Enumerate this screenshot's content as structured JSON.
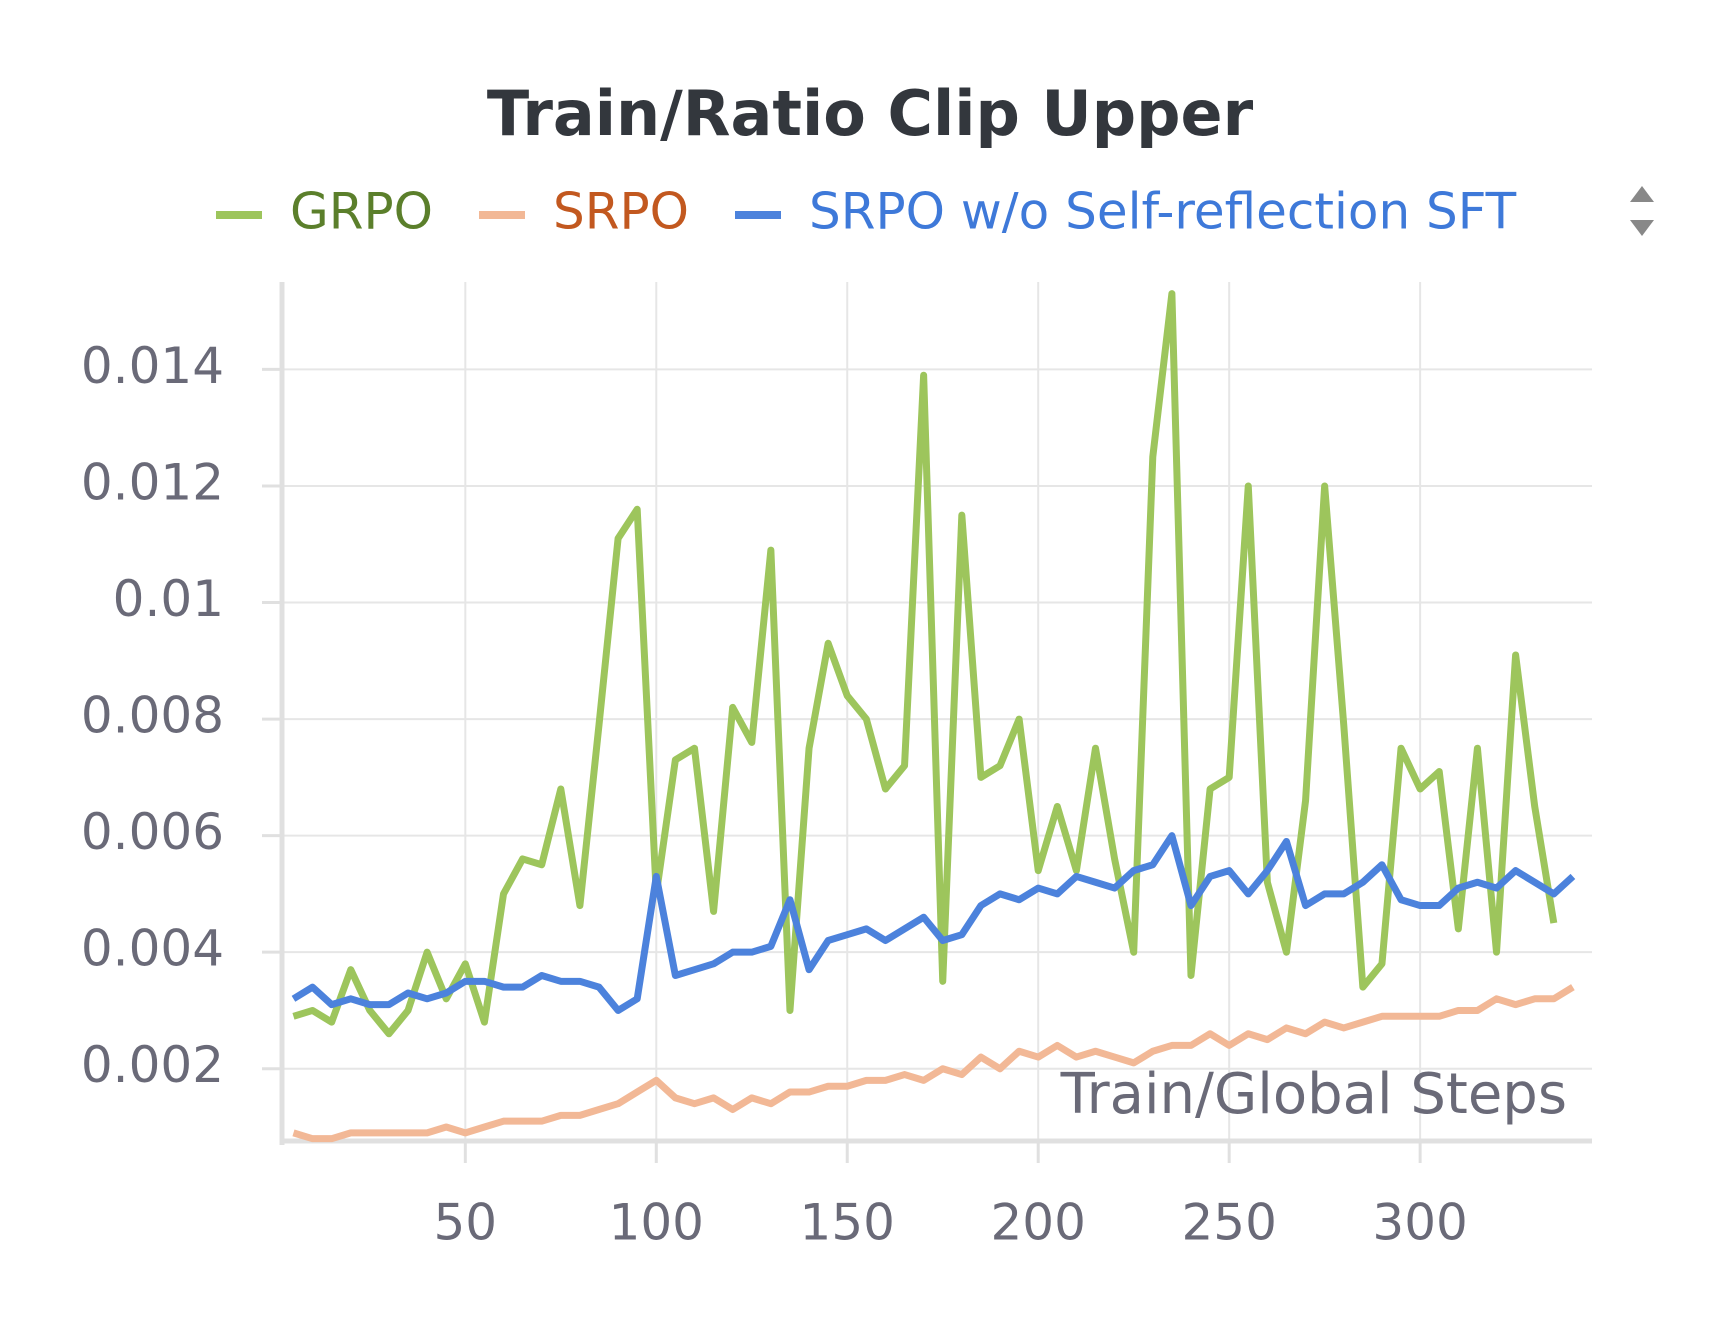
{
  "chart_data": {
    "type": "line",
    "title": "Train/Ratio Clip Upper",
    "x_label": "Train/Global Steps",
    "x": [
      5,
      10,
      15,
      20,
      25,
      30,
      35,
      40,
      45,
      50,
      55,
      60,
      65,
      70,
      75,
      80,
      85,
      90,
      95,
      100,
      105,
      110,
      115,
      120,
      125,
      130,
      135,
      140,
      145,
      150,
      155,
      160,
      165,
      170,
      175,
      180,
      185,
      190,
      195,
      200,
      205,
      210,
      215,
      220,
      225,
      230,
      235,
      240,
      245,
      250,
      255,
      260,
      265,
      270,
      275,
      280,
      285,
      290,
      295,
      300,
      305,
      310,
      315,
      320,
      325,
      330,
      335,
      340
    ],
    "series": [
      {
        "name": "GRPO",
        "color": "#9dc55c",
        "legend_text_color": "#5b7f2b",
        "values": [
          0.0029,
          0.003,
          0.0028,
          0.0037,
          0.003,
          0.0026,
          0.003,
          0.004,
          0.0032,
          0.0038,
          0.0028,
          0.005,
          0.0056,
          0.0055,
          0.0068,
          0.0048,
          0.0079,
          0.0111,
          0.0116,
          0.005,
          0.0073,
          0.0075,
          0.0047,
          0.0082,
          0.0076,
          0.0109,
          0.003,
          0.0075,
          0.0093,
          0.0084,
          0.008,
          0.0068,
          0.0072,
          0.0139,
          0.0035,
          0.0115,
          0.007,
          0.0072,
          0.008,
          0.0054,
          0.0065,
          0.0054,
          0.0075,
          0.0056,
          0.004,
          0.0125,
          0.0153,
          0.0036,
          0.0068,
          0.007,
          0.012,
          0.0052,
          0.004,
          0.0066,
          0.012,
          0.0079,
          0.0034,
          0.0038,
          0.0075,
          0.0068,
          0.0071,
          0.0044,
          0.0075,
          0.004,
          0.0091,
          0.0065,
          0.0045,
          null
        ]
      },
      {
        "name": "SRPO",
        "color": "#f2b896",
        "legend_text_color": "#c2581f",
        "values": [
          0.0009,
          0.0008,
          0.0008,
          0.0009,
          0.0009,
          0.0009,
          0.0009,
          0.0009,
          0.001,
          0.0009,
          0.001,
          0.0011,
          0.0011,
          0.0011,
          0.0012,
          0.0012,
          0.0013,
          0.0014,
          0.0016,
          0.0018,
          0.0015,
          0.0014,
          0.0015,
          0.0013,
          0.0015,
          0.0014,
          0.0016,
          0.0016,
          0.0017,
          0.0017,
          0.0018,
          0.0018,
          0.0019,
          0.0018,
          0.002,
          0.0019,
          0.0022,
          0.002,
          0.0023,
          0.0022,
          0.0024,
          0.0022,
          0.0023,
          0.0022,
          0.0021,
          0.0023,
          0.0024,
          0.0024,
          0.0026,
          0.0024,
          0.0026,
          0.0025,
          0.0027,
          0.0026,
          0.0028,
          0.0027,
          0.0028,
          0.0029,
          0.0029,
          0.0029,
          0.0029,
          0.003,
          0.003,
          0.0032,
          0.0031,
          0.0032,
          0.0032,
          0.0034
        ]
      },
      {
        "name": "SRPO w/o Self-reflection SFT",
        "color": "#4c82dc",
        "legend_text_color": "#3e79d9",
        "values": [
          0.0032,
          0.0034,
          0.0031,
          0.0032,
          0.0031,
          0.0031,
          0.0033,
          0.0032,
          0.0033,
          0.0035,
          0.0035,
          0.0034,
          0.0034,
          0.0036,
          0.0035,
          0.0035,
          0.0034,
          0.003,
          0.0032,
          0.0053,
          0.0036,
          0.0037,
          0.0038,
          0.004,
          0.004,
          0.0041,
          0.0049,
          0.0037,
          0.0042,
          0.0043,
          0.0044,
          0.0042,
          0.0044,
          0.0046,
          0.0042,
          0.0043,
          0.0048,
          0.005,
          0.0049,
          0.0051,
          0.005,
          0.0053,
          0.0052,
          0.0051,
          0.0054,
          0.0055,
          0.006,
          0.0048,
          0.0053,
          0.0054,
          0.005,
          0.0054,
          0.0059,
          0.0048,
          0.005,
          0.005,
          0.0052,
          0.0055,
          0.0049,
          0.0048,
          0.0048,
          0.0051,
          0.0052,
          0.0051,
          0.0054,
          0.0052,
          0.005,
          0.0053
        ]
      }
    ],
    "xlim": [
      2,
      345
    ],
    "xticks": [
      50,
      100,
      150,
      200,
      250,
      300
    ],
    "ylim": [
      0.00076,
      0.0155
    ],
    "yticks": [
      0.002,
      0.004,
      0.006,
      0.008,
      0.01,
      0.012,
      0.014
    ],
    "grid": true,
    "legend": "top"
  }
}
